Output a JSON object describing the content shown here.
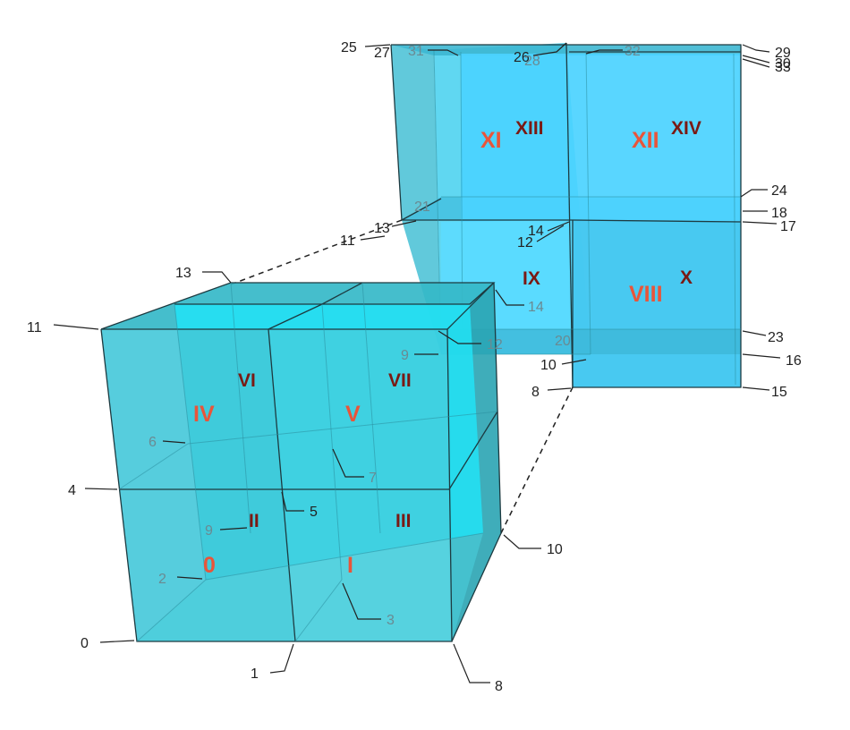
{
  "colors": {
    "small_face": "#38c8d8",
    "small_top": "#2fb2c2",
    "small_side": "#279aa8",
    "small_inner": "#22e2f5",
    "large_face": "#3fcfe6",
    "large_front": "#47ccff",
    "large_top": "#3bb4d0",
    "roman_red": "#e8553a",
    "roman_dark": "#7a1a14"
  },
  "small_cube": {
    "node_labels": {
      "n0": "0",
      "n1": "1",
      "n2": "2",
      "n3": "3",
      "n4": "4",
      "n5": "5",
      "n6": "6",
      "n7": "7",
      "n8": "8",
      "n9": "9",
      "n10": "10",
      "n11": "11",
      "n12": "12",
      "n13": "13",
      "n14": "14"
    },
    "cells": {
      "c0": "0",
      "c1": "I",
      "c2": "II",
      "c3": "III",
      "c4": "IV",
      "c5": "V",
      "c6": "VI",
      "c7": "VII"
    }
  },
  "large_cube": {
    "node_labels": {
      "n8": "8",
      "n9": "9",
      "n10": "10",
      "n11": "11",
      "n12": "12",
      "n13": "13",
      "n14": "14",
      "n14b": "14",
      "n12b": "12",
      "n15": "15",
      "n16": "16",
      "n17": "17",
      "n18": "18",
      "n20": "20",
      "n21": "21",
      "n23": "23",
      "n24": "24",
      "n25": "25",
      "n26": "26",
      "n27": "27",
      "n28": "28",
      "n29": "29",
      "n30": "30",
      "n31": "31",
      "n32": "32",
      "n33": "33"
    },
    "cells": {
      "c8": "VIII",
      "c9": "IX",
      "c10": "X",
      "c11": "XI",
      "c12": "XII",
      "c13": "XIII",
      "c14": "XIV"
    }
  }
}
